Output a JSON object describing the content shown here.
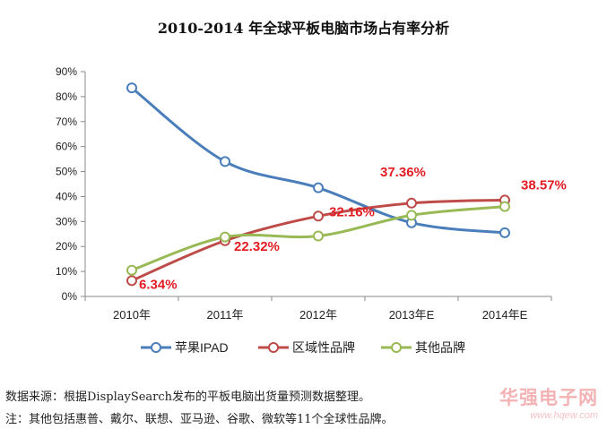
{
  "chart_data": {
    "type": "line",
    "title": "2010-2014 年全球平板电脑市场占有率分析",
    "categories": [
      "2010年",
      "2011年",
      "2012年",
      "2013年E",
      "2014年E"
    ],
    "ylim": [
      0,
      90
    ],
    "yticks": [
      "0%",
      "10%",
      "20%",
      "30%",
      "40%",
      "50%",
      "60%",
      "70%",
      "80%",
      "90%"
    ],
    "grid": false,
    "legend": "bottom",
    "series": [
      {
        "name": "苹果IPAD",
        "color": "#4a7ebb",
        "values": [
          83.5,
          54,
          43.5,
          29.5,
          25.5
        ],
        "labels": [
          "",
          "",
          "",
          "",
          ""
        ]
      },
      {
        "name": "区域性品牌",
        "color": "#be4b48",
        "values": [
          6.34,
          22.32,
          32.16,
          37.36,
          38.57
        ],
        "labels": [
          "6.34%",
          "22.32%",
          "32.16%",
          "37.36%",
          "38.57%"
        ]
      },
      {
        "name": "其他品牌",
        "color": "#98b954",
        "values": [
          10.5,
          23.8,
          24.2,
          32.5,
          36
        ],
        "labels": [
          "",
          "",
          "",
          "",
          ""
        ]
      }
    ],
    "label_color": "#e31b23"
  },
  "footer": {
    "source": "数据来源：根据DisplaySearch发布的平板电脑出货量预测数据整理。",
    "note": "注：其他包括惠普、戴尔、联想、亚马逊、谷歌、微软等11个全球性品牌。"
  },
  "watermark": {
    "name": "华强电子网",
    "url": "www.hqew.com"
  }
}
